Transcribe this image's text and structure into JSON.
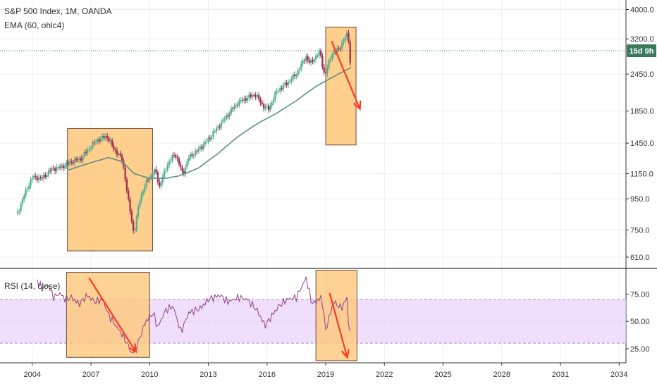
{
  "chart_data": [
    {
      "type": "candlestick",
      "legend": {
        "title": "S&P 500 Index, 1M, OANDA",
        "indicator": "EMA (60, ohlc4)"
      },
      "y_scale": "log",
      "y_ticks": [
        "4000.0",
        "3200.0",
        "2450.0",
        "1850.0",
        "1450.0",
        "1150.0",
        "950.0",
        "750.0",
        "610.0"
      ],
      "y_tick_values": [
        4000,
        3200,
        2450,
        1850,
        1450,
        1150,
        950,
        750,
        610
      ],
      "ylim": [
        560,
        4300
      ],
      "current_price_badge": "15d 9h",
      "current_price": 2925,
      "colors": {
        "up": "#4caf8f",
        "down": "#a3264a",
        "ema": "#5b8f8c",
        "highlight_fill": "#ffc77a",
        "highlight_stroke": "#6b4a3a",
        "arrow": "#ff3b1f",
        "price_line": "#3a7a5d"
      },
      "price_anchors": [
        [
          2003.25,
          850
        ],
        [
          2003.6,
          980
        ],
        [
          2004.0,
          1120
        ],
        [
          2004.5,
          1110
        ],
        [
          2005.0,
          1190
        ],
        [
          2005.5,
          1210
        ],
        [
          2006.0,
          1260
        ],
        [
          2006.5,
          1290
        ],
        [
          2007.0,
          1420
        ],
        [
          2007.3,
          1480
        ],
        [
          2007.8,
          1530
        ],
        [
          2008.2,
          1380
        ],
        [
          2008.6,
          1280
        ],
        [
          2008.9,
          940
        ],
        [
          2009.2,
          720
        ],
        [
          2009.5,
          950
        ],
        [
          2009.9,
          1100
        ],
        [
          2010.3,
          1180
        ],
        [
          2010.5,
          1040
        ],
        [
          2010.9,
          1230
        ],
        [
          2011.3,
          1340
        ],
        [
          2011.7,
          1140
        ],
        [
          2012.0,
          1300
        ],
        [
          2012.5,
          1380
        ],
        [
          2013.0,
          1490
        ],
        [
          2013.5,
          1640
        ],
        [
          2014.0,
          1800
        ],
        [
          2014.5,
          1970
        ],
        [
          2015.0,
          2050
        ],
        [
          2015.4,
          2100
        ],
        [
          2015.8,
          1920
        ],
        [
          2016.1,
          1880
        ],
        [
          2016.5,
          2150
        ],
        [
          2017.0,
          2280
        ],
        [
          2017.5,
          2450
        ],
        [
          2018.0,
          2800
        ],
        [
          2018.2,
          2650
        ],
        [
          2018.7,
          2900
        ],
        [
          2018.95,
          2400
        ],
        [
          2019.3,
          2850
        ],
        [
          2019.7,
          2980
        ],
        [
          2020.0,
          3230
        ],
        [
          2020.15,
          3380
        ],
        [
          2020.22,
          2580
        ],
        [
          2020.33,
          2920
        ]
      ],
      "ema_anchors": [
        [
          2005.8,
          1180
        ],
        [
          2007.0,
          1250
        ],
        [
          2007.9,
          1300
        ],
        [
          2008.6,
          1260
        ],
        [
          2009.2,
          1150
        ],
        [
          2010.0,
          1110
        ],
        [
          2010.8,
          1110
        ],
        [
          2011.5,
          1130
        ],
        [
          2012.5,
          1200
        ],
        [
          2013.5,
          1340
        ],
        [
          2014.5,
          1520
        ],
        [
          2015.5,
          1680
        ],
        [
          2016.5,
          1820
        ],
        [
          2017.5,
          2000
        ],
        [
          2018.5,
          2230
        ],
        [
          2019.5,
          2420
        ],
        [
          2020.33,
          2580
        ]
      ],
      "highlight_boxes": [
        {
          "x": [
            2005.8,
            2010.15
          ],
          "y": [
            640,
            1620
          ]
        },
        {
          "x": [
            2019.0,
            2020.55
          ],
          "y": [
            1430,
            3500
          ]
        }
      ],
      "arrows": [
        {
          "from": [
            2019.3,
            3150
          ],
          "to": [
            2020.75,
            1880
          ]
        }
      ]
    },
    {
      "type": "line",
      "legend": {
        "title": "RSI (14, close)"
      },
      "y_ticks": [
        "75.00",
        "50.00",
        "25.00"
      ],
      "y_tick_values": [
        75,
        50,
        25
      ],
      "ylim": [
        12,
        98
      ],
      "band": [
        30,
        70
      ],
      "colors": {
        "line": "#8e3f8e",
        "band": "#ebd4fb",
        "band_lines": "#b48ac0",
        "highlight_fill": "#ffc77a",
        "highlight_stroke": "#6b4a3a",
        "arrow": "#ff3b1f"
      },
      "rsi_anchors": [
        [
          2004.25,
          88
        ],
        [
          2004.5,
          80
        ],
        [
          2004.8,
          84
        ],
        [
          2005.1,
          72
        ],
        [
          2005.4,
          76
        ],
        [
          2005.7,
          70
        ],
        [
          2006.0,
          72
        ],
        [
          2006.4,
          66
        ],
        [
          2006.8,
          74
        ],
        [
          2007.2,
          68
        ],
        [
          2007.6,
          70
        ],
        [
          2007.9,
          56
        ],
        [
          2008.2,
          48
        ],
        [
          2008.6,
          38
        ],
        [
          2008.9,
          28
        ],
        [
          2009.1,
          20
        ],
        [
          2009.4,
          30
        ],
        [
          2009.8,
          50
        ],
        [
          2010.2,
          58
        ],
        [
          2010.4,
          44
        ],
        [
          2010.8,
          60
        ],
        [
          2011.2,
          64
        ],
        [
          2011.6,
          40
        ],
        [
          2012.0,
          58
        ],
        [
          2012.6,
          62
        ],
        [
          2013.0,
          70
        ],
        [
          2013.6,
          74
        ],
        [
          2014.0,
          68
        ],
        [
          2014.6,
          72
        ],
        [
          2015.0,
          70
        ],
        [
          2015.5,
          60
        ],
        [
          2015.9,
          46
        ],
        [
          2016.2,
          54
        ],
        [
          2016.6,
          64
        ],
        [
          2017.0,
          70
        ],
        [
          2017.5,
          72
        ],
        [
          2018.0,
          90
        ],
        [
          2018.3,
          66
        ],
        [
          2018.8,
          72
        ],
        [
          2019.0,
          42
        ],
        [
          2019.4,
          68
        ],
        [
          2019.8,
          62
        ],
        [
          2020.1,
          72
        ],
        [
          2020.2,
          36
        ],
        [
          2020.33,
          48
        ]
      ],
      "highlight_boxes": [
        {
          "x": [
            2005.75,
            2010.0
          ],
          "y": [
            17,
            95
          ]
        },
        {
          "x": [
            2018.5,
            2020.6
          ],
          "y": [
            14,
            97
          ]
        }
      ],
      "arrows": [
        {
          "from": [
            2006.9,
            90
          ],
          "to": [
            2009.3,
            22
          ]
        },
        {
          "from": [
            2019.2,
            76
          ],
          "to": [
            2020.1,
            17
          ]
        }
      ]
    }
  ],
  "x_axis": {
    "ticks": [
      "2004",
      "2007",
      "2010",
      "2013",
      "2016",
      "2019",
      "2022",
      "2025",
      "2028",
      "2031",
      "2034"
    ],
    "tick_years": [
      2004,
      2007,
      2010,
      2013,
      2016,
      2019,
      2022,
      2025,
      2028,
      2031,
      2034
    ],
    "xlim": [
      2002.35,
      2034.35
    ]
  }
}
